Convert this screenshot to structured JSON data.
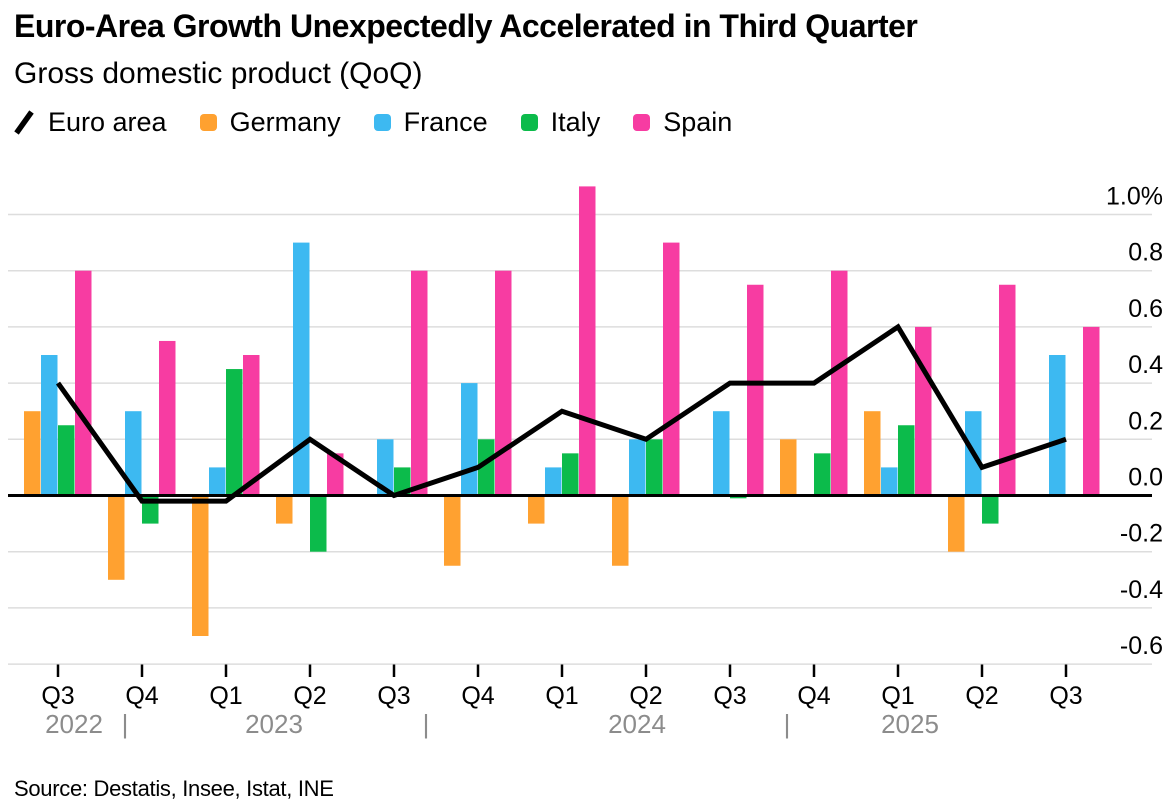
{
  "header": {
    "title": "Euro-Area Growth Unexpectedly Accelerated in Third Quarter",
    "subtitle": "Gross domestic product (QoQ)"
  },
  "legend": {
    "items": [
      {
        "label": "Euro area",
        "marker": "line",
        "color": "#000000"
      },
      {
        "label": "Germany",
        "marker": "square",
        "color": "#FFA130"
      },
      {
        "label": "France",
        "marker": "square",
        "color": "#3DB9F1"
      },
      {
        "label": "Italy",
        "marker": "square",
        "color": "#0CBB4B"
      },
      {
        "label": "Spain",
        "marker": "square",
        "color": "#F73CA2"
      }
    ]
  },
  "chart_data": {
    "type": "bar",
    "subtype": "grouped-bars-with-line-overlay",
    "title": "Euro-Area Growth Unexpectedly Accelerated in Third Quarter",
    "subtitle": "Gross domestic product (QoQ)",
    "categories": [
      "Q3 2022",
      "Q4 2022",
      "Q1 2023",
      "Q2 2023",
      "Q3 2023",
      "Q4 2023",
      "Q1 2024",
      "Q2 2024",
      "Q3 2024",
      "Q4 2024",
      "Q1 2025",
      "Q2 2025",
      "Q3 2025"
    ],
    "x_quarter_labels": [
      "Q3",
      "Q4",
      "Q1",
      "Q2",
      "Q3",
      "Q4",
      "Q1",
      "Q2",
      "Q3",
      "Q4",
      "Q1",
      "Q2",
      "Q3"
    ],
    "x_year_labels": [
      "2022",
      "2023",
      "2024",
      "2025"
    ],
    "x_year_separator": "|",
    "y_axis": {
      "unit": "%",
      "tick_labels": [
        "1.0%",
        "0.8",
        "0.6",
        "0.4",
        "0.2",
        "0.0",
        "-0.2",
        "-0.4",
        "-0.6"
      ],
      "tick_values": [
        1.0,
        0.8,
        0.6,
        0.4,
        0.2,
        0.0,
        -0.2,
        -0.4,
        -0.6
      ],
      "range": [
        -0.72,
        1.15
      ],
      "grid": true,
      "zero_line": true,
      "labels_side": "right"
    },
    "legend_position": "top-left",
    "series": [
      {
        "name": "Euro area",
        "type": "line",
        "color": "#000000",
        "values": [
          0.4,
          -0.02,
          -0.02,
          0.2,
          0.0,
          0.1,
          0.3,
          0.2,
          0.4,
          0.4,
          0.6,
          0.1,
          0.2
        ]
      },
      {
        "name": "Germany",
        "type": "bar",
        "color": "#FFA130",
        "values": [
          0.3,
          -0.3,
          -0.5,
          -0.1,
          0.0,
          -0.25,
          -0.1,
          -0.25,
          0.0,
          0.2,
          0.3,
          -0.2,
          0.0
        ]
      },
      {
        "name": "France",
        "type": "bar",
        "color": "#3DB9F1",
        "values": [
          0.5,
          0.3,
          0.1,
          0.9,
          0.2,
          0.4,
          0.1,
          0.2,
          0.3,
          0.0,
          0.1,
          0.3,
          0.5
        ]
      },
      {
        "name": "Italy",
        "type": "bar",
        "color": "#0CBB4B",
        "values": [
          0.25,
          -0.1,
          0.45,
          -0.2,
          0.1,
          0.2,
          0.15,
          0.2,
          -0.01,
          0.15,
          0.25,
          -0.1,
          0.0
        ]
      },
      {
        "name": "Spain",
        "type": "bar",
        "color": "#F73CA2",
        "values": [
          0.8,
          0.55,
          0.5,
          0.15,
          0.8,
          0.8,
          1.1,
          0.9,
          0.75,
          0.8,
          0.6,
          0.75,
          0.6
        ]
      }
    ]
  },
  "colors": {
    "background": "#FFFFFF",
    "text": "#000000",
    "grid": "#DDDDDD",
    "zero_axis": "#000000",
    "year_label": "#8C8C8C",
    "euro_area": "#000000",
    "germany": "#FFA130",
    "france": "#3DB9F1",
    "italy": "#0CBB4B",
    "spain": "#F73CA2"
  },
  "footer": {
    "source": "Source: Destatis, Insee, Istat, INE"
  }
}
